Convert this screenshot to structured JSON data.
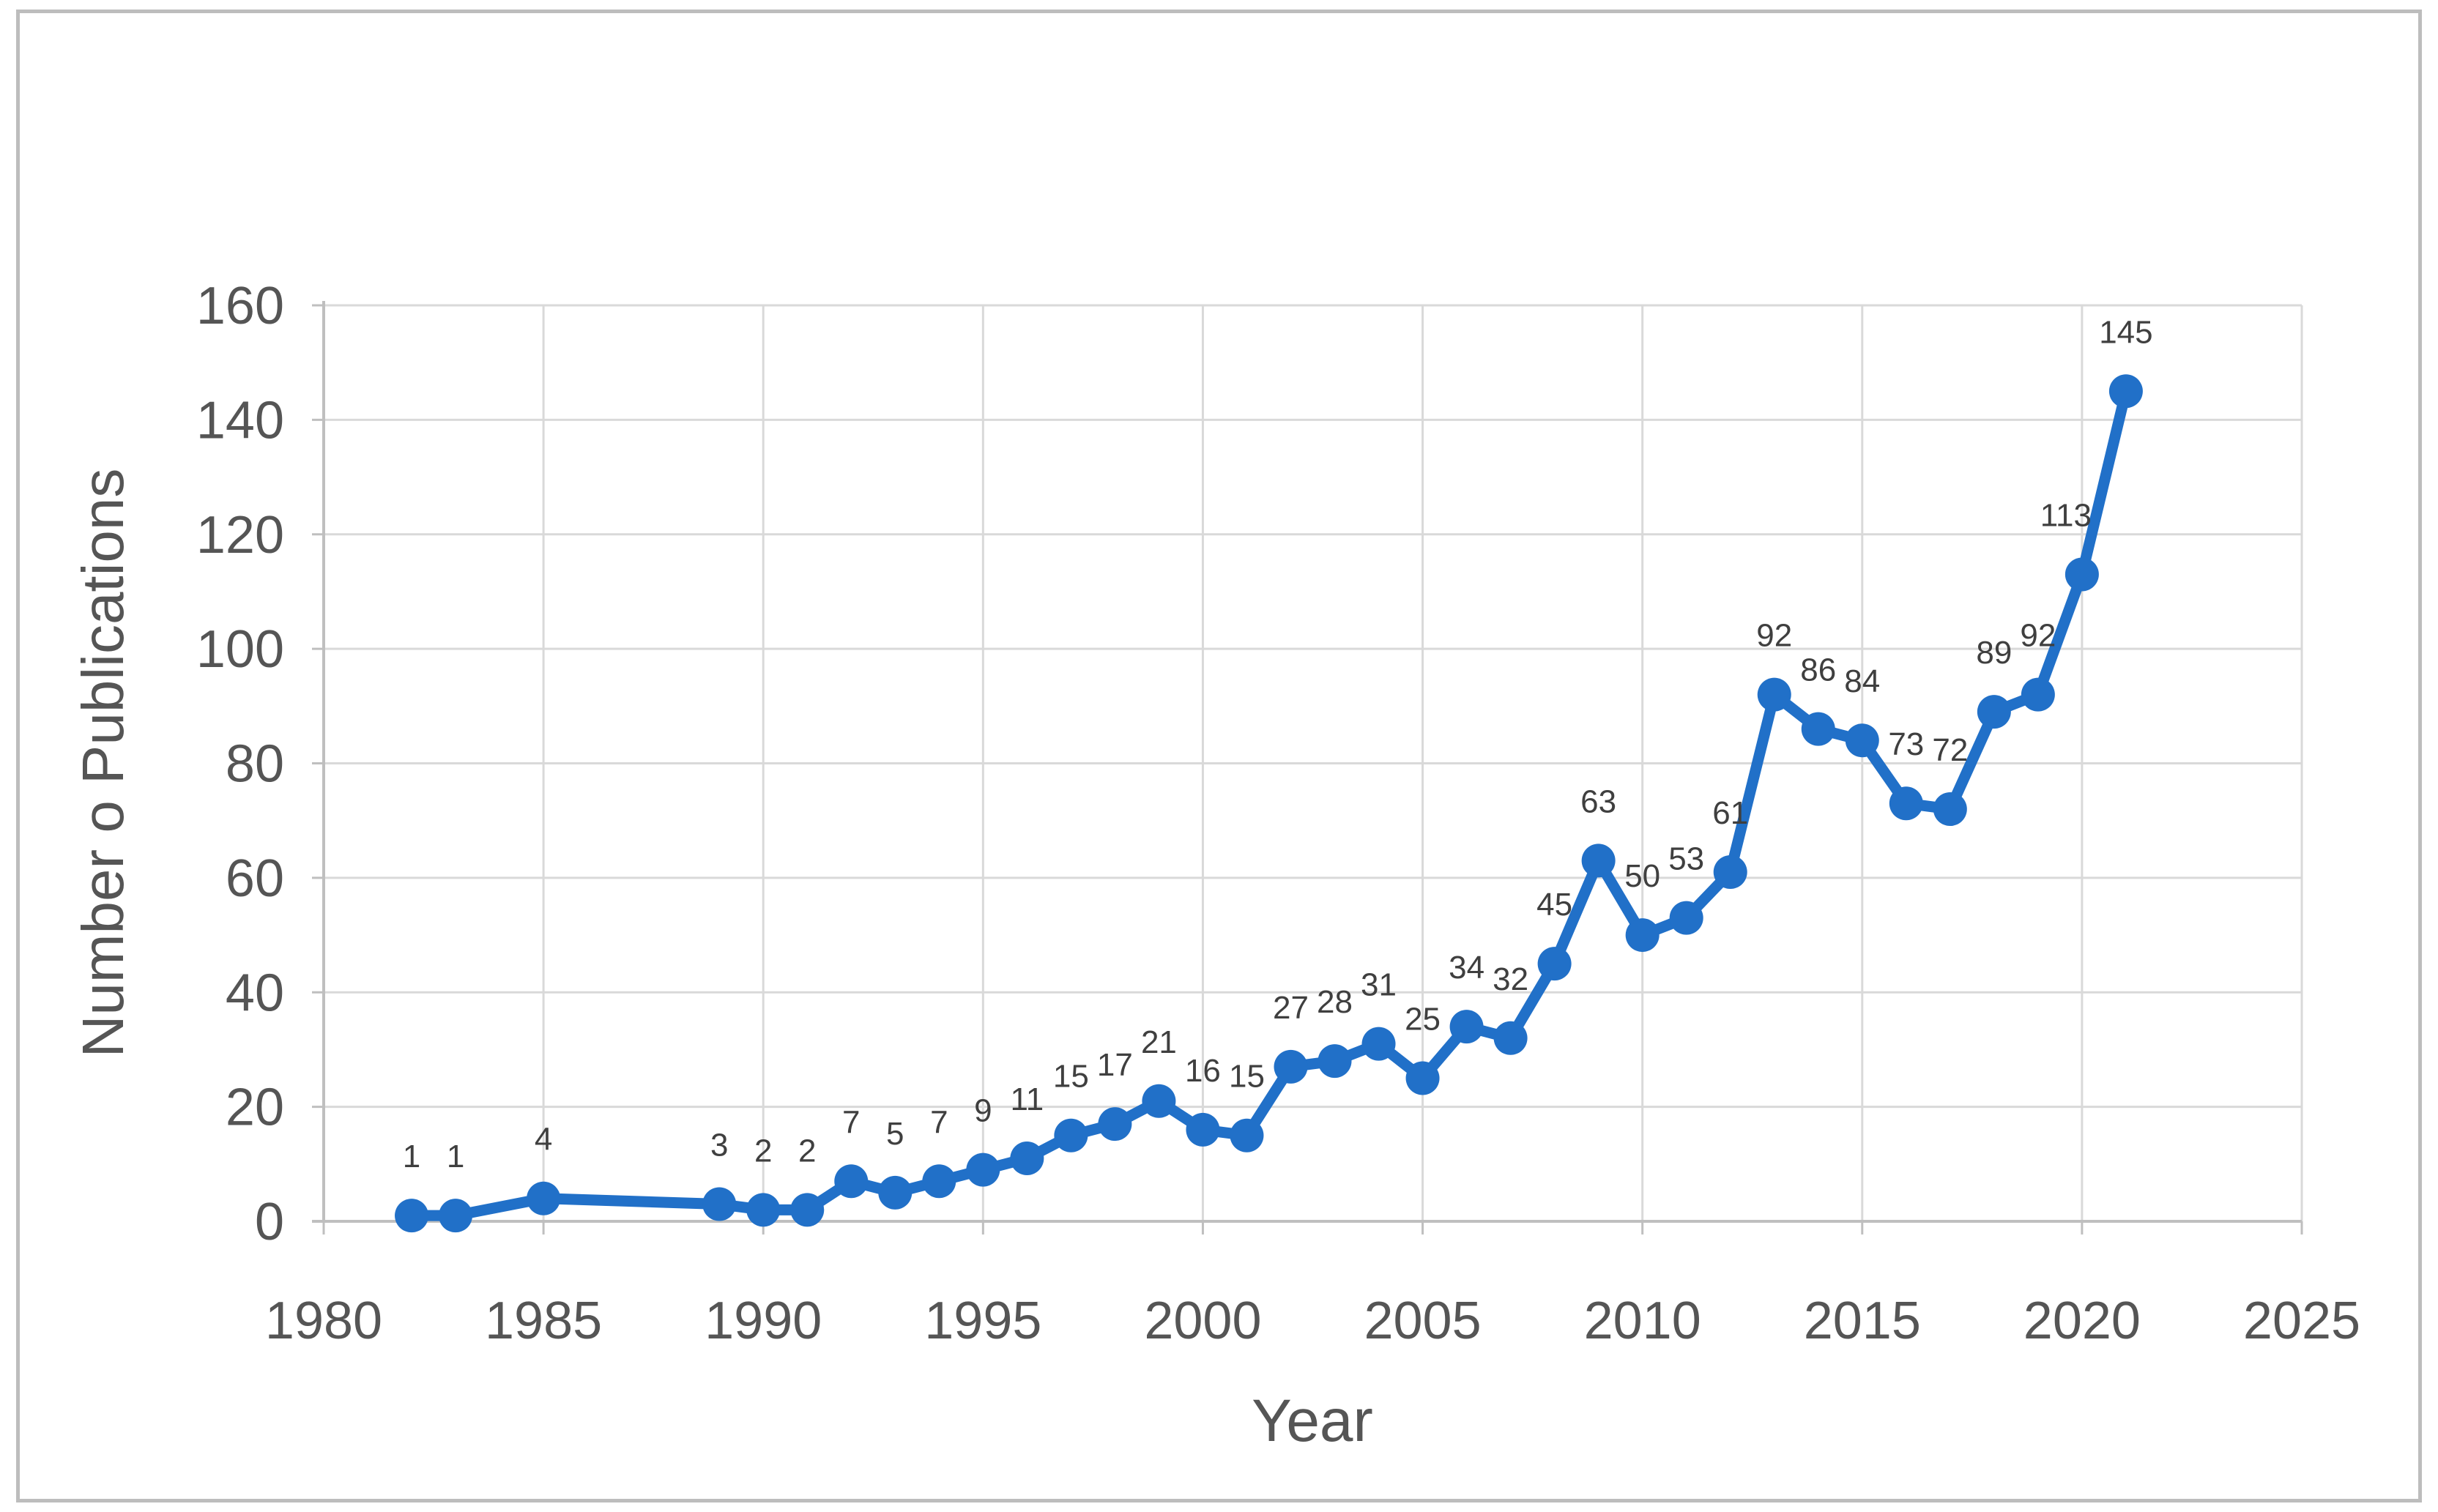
{
  "chart_data": {
    "type": "line",
    "title": "",
    "xlabel": "Year",
    "ylabel": "Number o Publications",
    "xlim": [
      1980,
      2025
    ],
    "ylim": [
      0,
      160
    ],
    "x_ticks": [
      1980,
      1985,
      1990,
      1995,
      2000,
      2005,
      2010,
      2015,
      2020,
      2025
    ],
    "y_ticks": [
      0,
      20,
      40,
      60,
      80,
      100,
      120,
      140,
      160
    ],
    "grid": true,
    "legend": false,
    "series": [
      {
        "marker": "circle",
        "color": "#2170C8",
        "data_labels": true,
        "points": [
          {
            "x": 1982,
            "y": 1
          },
          {
            "x": 1983,
            "y": 1
          },
          {
            "x": 1985,
            "y": 4
          },
          {
            "x": 1989,
            "y": 3
          },
          {
            "x": 1990,
            "y": 2
          },
          {
            "x": 1991,
            "y": 2
          },
          {
            "x": 1992,
            "y": 7
          },
          {
            "x": 1993,
            "y": 5
          },
          {
            "x": 1994,
            "y": 7
          },
          {
            "x": 1995,
            "y": 9
          },
          {
            "x": 1996,
            "y": 11
          },
          {
            "x": 1997,
            "y": 15
          },
          {
            "x": 1998,
            "y": 17
          },
          {
            "x": 1999,
            "y": 21
          },
          {
            "x": 2000,
            "y": 16
          },
          {
            "x": 2001,
            "y": 15
          },
          {
            "x": 2002,
            "y": 27
          },
          {
            "x": 2003,
            "y": 28
          },
          {
            "x": 2004,
            "y": 31
          },
          {
            "x": 2005,
            "y": 25
          },
          {
            "x": 2006,
            "y": 34
          },
          {
            "x": 2007,
            "y": 32
          },
          {
            "x": 2008,
            "y": 45
          },
          {
            "x": 2009,
            "y": 63
          },
          {
            "x": 2010,
            "y": 50
          },
          {
            "x": 2011,
            "y": 53
          },
          {
            "x": 2012,
            "y": 61
          },
          {
            "x": 2013,
            "y": 92
          },
          {
            "x": 2014,
            "y": 86
          },
          {
            "x": 2015,
            "y": 84
          },
          {
            "x": 2016,
            "y": 73
          },
          {
            "x": 2017,
            "y": 72
          },
          {
            "x": 2018,
            "y": 89
          },
          {
            "x": 2019,
            "y": 92
          },
          {
            "x": 2020,
            "y": 113
          },
          {
            "x": 2021,
            "y": 145
          }
        ]
      }
    ]
  },
  "style": {
    "line_color": "#2170C8",
    "gridline_color": "#D9D9D9",
    "axis_color": "#BFBFBF",
    "tick_label_color": "#555555",
    "axis_title_color": "#555555",
    "data_label_color": "#3F3F3F",
    "background": "#FFFFFF",
    "border_color": "#BDBDBD"
  }
}
